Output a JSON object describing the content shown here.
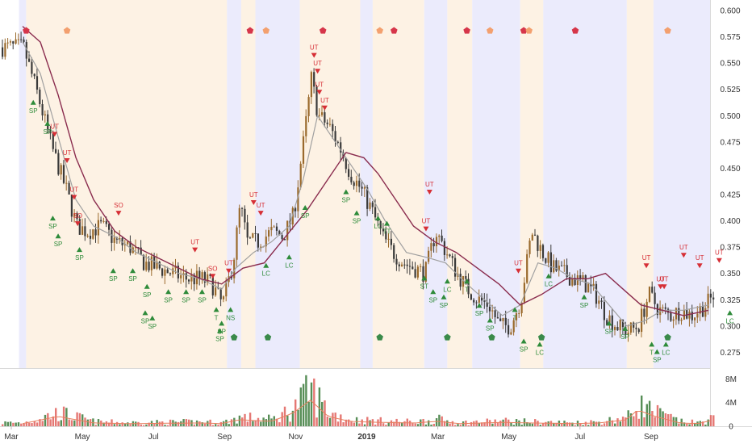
{
  "chart_data": {
    "type": "candlestick",
    "title": "",
    "price_axis": {
      "range": [
        0.26,
        0.61
      ],
      "ticks": [
        "0.600",
        "0.575",
        "0.550",
        "0.525",
        "0.500",
        "0.475",
        "0.450",
        "0.425",
        "0.400",
        "0.375",
        "0.350",
        "0.325",
        "0.300",
        "0.275"
      ]
    },
    "volume_axis": {
      "range": [
        0,
        9
      ],
      "unit": "M",
      "ticks": [
        "8M",
        "4M",
        "0"
      ]
    },
    "x_axis": {
      "ticks": [
        {
          "label": "Mar",
          "month": 0
        },
        {
          "label": "May",
          "month": 2
        },
        {
          "label": "Jul",
          "month": 4
        },
        {
          "label": "Sep",
          "month": 6
        },
        {
          "label": "Nov",
          "month": 8
        },
        {
          "label": "2019",
          "month": 10
        },
        {
          "label": "Mar",
          "month": 12
        },
        {
          "label": "May",
          "month": 14
        },
        {
          "label": "Jul",
          "month": 16
        },
        {
          "label": "Sep",
          "month": 18
        }
      ]
    },
    "background_bands": [
      {
        "from": -0.1,
        "to": 0.1,
        "color": "blue"
      },
      {
        "from": 0.1,
        "to": 5.75,
        "color": "orange"
      },
      {
        "from": 5.75,
        "to": 6.15,
        "color": "blue"
      },
      {
        "from": 6.15,
        "to": 6.55,
        "color": "orange"
      },
      {
        "from": 6.55,
        "to": 7.8,
        "color": "blue"
      },
      {
        "from": 7.8,
        "to": 9.5,
        "color": "orange"
      },
      {
        "from": 9.5,
        "to": 9.85,
        "color": "blue"
      },
      {
        "from": 9.85,
        "to": 11.3,
        "color": "orange"
      },
      {
        "from": 11.3,
        "to": 11.95,
        "color": "blue"
      },
      {
        "from": 11.95,
        "to": 12.65,
        "color": "orange"
      },
      {
        "from": 12.65,
        "to": 14.0,
        "color": "blue"
      },
      {
        "from": 14.0,
        "to": 14.65,
        "color": "orange"
      },
      {
        "from": 14.65,
        "to": 17.0,
        "color": "blue"
      },
      {
        "from": 17.0,
        "to": 17.75,
        "color": "orange"
      },
      {
        "from": 17.75,
        "to": 19.6,
        "color": "blue"
      }
    ],
    "price_path": [
      [
        0.0,
        0.565
      ],
      [
        0.4,
        0.52
      ],
      [
        0.8,
        0.47
      ],
      [
        1.2,
        0.43
      ],
      [
        1.5,
        0.395
      ],
      [
        1.8,
        0.39
      ],
      [
        2.2,
        0.395
      ],
      [
        2.6,
        0.38
      ],
      [
        3.0,
        0.375
      ],
      [
        3.4,
        0.36
      ],
      [
        3.8,
        0.355
      ],
      [
        4.2,
        0.35
      ],
      [
        4.6,
        0.345
      ],
      [
        5.0,
        0.345
      ],
      [
        5.3,
        0.34
      ],
      [
        5.6,
        0.32
      ],
      [
        5.9,
        0.36
      ],
      [
        6.1,
        0.415
      ],
      [
        6.3,
        0.38
      ],
      [
        6.6,
        0.38
      ],
      [
        7.0,
        0.39
      ],
      [
        7.3,
        0.385
      ],
      [
        7.6,
        0.405
      ],
      [
        7.9,
        0.48
      ],
      [
        8.1,
        0.535
      ],
      [
        8.3,
        0.5
      ],
      [
        8.6,
        0.49
      ],
      [
        8.9,
        0.47
      ],
      [
        9.2,
        0.445
      ],
      [
        9.5,
        0.43
      ],
      [
        9.8,
        0.41
      ],
      [
        10.1,
        0.385
      ],
      [
        10.4,
        0.37
      ],
      [
        10.7,
        0.36
      ],
      [
        11.0,
        0.355
      ],
      [
        11.3,
        0.35
      ],
      [
        11.6,
        0.39
      ],
      [
        11.9,
        0.37
      ],
      [
        12.2,
        0.35
      ],
      [
        12.5,
        0.335
      ],
      [
        12.8,
        0.325
      ],
      [
        13.1,
        0.32
      ],
      [
        13.4,
        0.3
      ],
      [
        13.7,
        0.3
      ],
      [
        14.0,
        0.325
      ],
      [
        14.3,
        0.39
      ],
      [
        14.6,
        0.37
      ],
      [
        14.9,
        0.355
      ],
      [
        15.2,
        0.35
      ],
      [
        15.5,
        0.345
      ],
      [
        15.8,
        0.34
      ],
      [
        16.1,
        0.33
      ],
      [
        16.4,
        0.31
      ],
      [
        16.7,
        0.3
      ],
      [
        17.0,
        0.295
      ],
      [
        17.3,
        0.3
      ],
      [
        17.6,
        0.33
      ],
      [
        17.9,
        0.315
      ],
      [
        18.2,
        0.31
      ],
      [
        18.5,
        0.315
      ],
      [
        18.8,
        0.31
      ],
      [
        19.2,
        0.32
      ],
      [
        19.45,
        0.33
      ]
    ],
    "moving_average_slow": [
      [
        0.0,
        0.585
      ],
      [
        0.5,
        0.57
      ],
      [
        1.0,
        0.52
      ],
      [
        1.5,
        0.46
      ],
      [
        2.0,
        0.42
      ],
      [
        2.6,
        0.39
      ],
      [
        3.2,
        0.375
      ],
      [
        3.8,
        0.365
      ],
      [
        4.4,
        0.355
      ],
      [
        5.0,
        0.345
      ],
      [
        5.6,
        0.34
      ],
      [
        6.2,
        0.355
      ],
      [
        6.8,
        0.36
      ],
      [
        7.4,
        0.385
      ],
      [
        8.0,
        0.41
      ],
      [
        8.6,
        0.44
      ],
      [
        9.1,
        0.465
      ],
      [
        9.6,
        0.46
      ],
      [
        10.0,
        0.445
      ],
      [
        10.5,
        0.42
      ],
      [
        11.0,
        0.395
      ],
      [
        11.6,
        0.38
      ],
      [
        12.2,
        0.37
      ],
      [
        12.8,
        0.355
      ],
      [
        13.4,
        0.34
      ],
      [
        14.0,
        0.32
      ],
      [
        14.6,
        0.33
      ],
      [
        15.3,
        0.345
      ],
      [
        15.9,
        0.345
      ],
      [
        16.4,
        0.35
      ],
      [
        16.9,
        0.335
      ],
      [
        17.4,
        0.32
      ],
      [
        18.0,
        0.315
      ],
      [
        18.6,
        0.31
      ],
      [
        19.3,
        0.315
      ]
    ],
    "moving_average_fast": [
      [
        0.0,
        0.57
      ],
      [
        0.5,
        0.54
      ],
      [
        1.0,
        0.48
      ],
      [
        1.5,
        0.42
      ],
      [
        2.0,
        0.395
      ],
      [
        2.6,
        0.385
      ],
      [
        3.2,
        0.37
      ],
      [
        3.8,
        0.36
      ],
      [
        4.4,
        0.35
      ],
      [
        5.0,
        0.345
      ],
      [
        5.6,
        0.335
      ],
      [
        6.0,
        0.355
      ],
      [
        6.5,
        0.37
      ],
      [
        7.0,
        0.38
      ],
      [
        7.5,
        0.395
      ],
      [
        7.9,
        0.44
      ],
      [
        8.3,
        0.5
      ],
      [
        8.7,
        0.48
      ],
      [
        9.2,
        0.455
      ],
      [
        9.7,
        0.43
      ],
      [
        10.2,
        0.4
      ],
      [
        10.8,
        0.37
      ],
      [
        11.4,
        0.365
      ],
      [
        11.9,
        0.36
      ],
      [
        12.5,
        0.34
      ],
      [
        13.0,
        0.325
      ],
      [
        13.5,
        0.31
      ],
      [
        14.0,
        0.32
      ],
      [
        14.5,
        0.36
      ],
      [
        15.0,
        0.355
      ],
      [
        15.5,
        0.345
      ],
      [
        16.0,
        0.34
      ],
      [
        16.5,
        0.32
      ],
      [
        17.0,
        0.3
      ],
      [
        17.5,
        0.305
      ],
      [
        18.0,
        0.315
      ],
      [
        18.6,
        0.315
      ],
      [
        19.3,
        0.32
      ]
    ],
    "volume_path": [
      [
        0.0,
        0.8
      ],
      [
        1.0,
        3.0
      ],
      [
        2.0,
        1.0
      ],
      [
        3.0,
        0.8
      ],
      [
        4.0,
        0.9
      ],
      [
        5.0,
        1.0
      ],
      [
        5.6,
        0.8
      ],
      [
        6.1,
        2.0
      ],
      [
        7.0,
        1.5
      ],
      [
        7.6,
        4.0
      ],
      [
        8.1,
        8.0
      ],
      [
        8.6,
        3.0
      ],
      [
        9.2,
        1.5
      ],
      [
        10.0,
        1.2
      ],
      [
        11.0,
        1.0
      ],
      [
        11.7,
        1.5
      ],
      [
        12.3,
        0.8
      ],
      [
        13.5,
        1.2
      ],
      [
        14.3,
        1.0
      ],
      [
        15.5,
        0.8
      ],
      [
        16.2,
        1.0
      ],
      [
        17.0,
        2.0
      ],
      [
        17.3,
        5.0
      ],
      [
        17.8,
        3.0
      ],
      [
        18.5,
        1.0
      ],
      [
        19.0,
        0.8
      ],
      [
        19.45,
        2.0
      ]
    ],
    "signals": [
      {
        "label": "SP",
        "month": 0.3,
        "price": 0.515,
        "side": "below"
      },
      {
        "label": "SP",
        "month": 0.7,
        "price": 0.495,
        "side": "below"
      },
      {
        "label": "UT",
        "month": 0.9,
        "price": 0.48,
        "side": "above"
      },
      {
        "label": "UT",
        "month": 1.25,
        "price": 0.455,
        "side": "above"
      },
      {
        "label": "UT",
        "month": 1.45,
        "price": 0.42,
        "side": "above"
      },
      {
        "label": "SP",
        "month": 0.85,
        "price": 0.405,
        "side": "below"
      },
      {
        "label": "SO",
        "month": 1.55,
        "price": 0.395,
        "side": "above"
      },
      {
        "label": "SP",
        "month": 1.0,
        "price": 0.388,
        "side": "below"
      },
      {
        "label": "SP",
        "month": 1.6,
        "price": 0.375,
        "side": "below"
      },
      {
        "label": "SO",
        "month": 2.7,
        "price": 0.405,
        "side": "above"
      },
      {
        "label": "SP",
        "month": 2.55,
        "price": 0.355,
        "side": "below"
      },
      {
        "label": "SP",
        "month": 3.1,
        "price": 0.355,
        "side": "below"
      },
      {
        "label": "SP",
        "month": 3.5,
        "price": 0.34,
        "side": "below"
      },
      {
        "label": "SP",
        "month": 3.45,
        "price": 0.315,
        "side": "below"
      },
      {
        "label": "SP",
        "month": 3.65,
        "price": 0.31,
        "side": "below"
      },
      {
        "label": "SP",
        "month": 4.1,
        "price": 0.335,
        "side": "below"
      },
      {
        "label": "UT",
        "month": 4.85,
        "price": 0.37,
        "side": "above"
      },
      {
        "label": "SP",
        "month": 4.6,
        "price": 0.335,
        "side": "below"
      },
      {
        "label": "SP",
        "month": 5.05,
        "price": 0.335,
        "side": "below"
      },
      {
        "label": "SO",
        "month": 5.35,
        "price": 0.345,
        "side": "above"
      },
      {
        "label": "T",
        "month": 5.45,
        "price": 0.318,
        "side": "below"
      },
      {
        "label": "SP",
        "month": 5.6,
        "price": 0.305,
        "side": "below"
      },
      {
        "label": "SP",
        "month": 5.55,
        "price": 0.298,
        "side": "below"
      },
      {
        "label": "UT",
        "month": 5.8,
        "price": 0.35,
        "side": "above"
      },
      {
        "label": "NS",
        "month": 5.85,
        "price": 0.318,
        "side": "below"
      },
      {
        "label": "UT",
        "month": 6.5,
        "price": 0.415,
        "side": "above"
      },
      {
        "label": "UT",
        "month": 6.7,
        "price": 0.405,
        "side": "above"
      },
      {
        "label": "LC",
        "month": 6.85,
        "price": 0.36,
        "side": "below"
      },
      {
        "label": "LC",
        "month": 7.5,
        "price": 0.368,
        "side": "below"
      },
      {
        "label": "SP",
        "month": 7.95,
        "price": 0.415,
        "side": "below"
      },
      {
        "label": "UT",
        "month": 8.2,
        "price": 0.555,
        "side": "above"
      },
      {
        "label": "UT",
        "month": 8.3,
        "price": 0.54,
        "side": "above"
      },
      {
        "label": "UT",
        "month": 8.35,
        "price": 0.52,
        "side": "above"
      },
      {
        "label": "UT",
        "month": 8.5,
        "price": 0.505,
        "side": "above"
      },
      {
        "label": "SP",
        "month": 9.1,
        "price": 0.43,
        "side": "below"
      },
      {
        "label": "SP",
        "month": 9.4,
        "price": 0.41,
        "side": "below"
      },
      {
        "label": "LC",
        "month": 10.0,
        "price": 0.405,
        "side": "below"
      },
      {
        "label": "TT",
        "month": 10.25,
        "price": 0.4,
        "side": "below"
      },
      {
        "label": "UT",
        "month": 11.45,
        "price": 0.425,
        "side": "above"
      },
      {
        "label": "UT",
        "month": 11.35,
        "price": 0.39,
        "side": "above"
      },
      {
        "label": "ST",
        "month": 11.3,
        "price": 0.348,
        "side": "below"
      },
      {
        "label": "SP",
        "month": 11.55,
        "price": 0.335,
        "side": "below"
      },
      {
        "label": "SP",
        "month": 11.85,
        "price": 0.33,
        "side": "below"
      },
      {
        "label": "LC",
        "month": 11.95,
        "price": 0.345,
        "side": "below"
      },
      {
        "label": "T",
        "month": 12.5,
        "price": 0.345,
        "side": "below"
      },
      {
        "label": "SP",
        "month": 12.85,
        "price": 0.322,
        "side": "below"
      },
      {
        "label": "SP",
        "month": 13.15,
        "price": 0.308,
        "side": "below"
      },
      {
        "label": "UT",
        "month": 13.95,
        "price": 0.35,
        "side": "above"
      },
      {
        "label": "T",
        "month": 13.85,
        "price": 0.318,
        "side": "below"
      },
      {
        "label": "SP",
        "month": 14.1,
        "price": 0.288,
        "side": "below"
      },
      {
        "label": "LC",
        "month": 14.55,
        "price": 0.285,
        "side": "below"
      },
      {
        "label": "LC",
        "month": 14.8,
        "price": 0.35,
        "side": "below"
      },
      {
        "label": "SP",
        "month": 15.8,
        "price": 0.33,
        "side": "below"
      },
      {
        "label": "SP",
        "month": 16.5,
        "price": 0.305,
        "side": "below"
      },
      {
        "label": "SP",
        "month": 16.95,
        "price": 0.3,
        "side": "below"
      },
      {
        "label": "UT",
        "month": 17.55,
        "price": 0.355,
        "side": "above"
      },
      {
        "label": "UT",
        "month": 17.95,
        "price": 0.335,
        "side": "above"
      },
      {
        "label": "UT",
        "month": 18.05,
        "price": 0.335,
        "side": "above"
      },
      {
        "label": "T",
        "month": 17.7,
        "price": 0.285,
        "side": "below"
      },
      {
        "label": "SP",
        "month": 17.85,
        "price": 0.278,
        "side": "below"
      },
      {
        "label": "LC",
        "month": 18.1,
        "price": 0.285,
        "side": "below"
      },
      {
        "label": "UT",
        "month": 18.6,
        "price": 0.365,
        "side": "above"
      },
      {
        "label": "UT",
        "month": 19.05,
        "price": 0.355,
        "side": "above"
      },
      {
        "label": "UT",
        "month": 19.6,
        "price": 0.36,
        "side": "above"
      },
      {
        "label": "LC",
        "month": 19.9,
        "price": 0.315,
        "side": "below"
      }
    ],
    "top_markers": [
      {
        "month": 0.1,
        "color": "red"
      },
      {
        "month": 1.25,
        "color": "orange"
      },
      {
        "month": 6.4,
        "color": "red"
      },
      {
        "month": 6.85,
        "color": "orange"
      },
      {
        "month": 8.45,
        "color": "red"
      },
      {
        "month": 10.05,
        "color": "orange"
      },
      {
        "month": 10.45,
        "color": "red"
      },
      {
        "month": 12.5,
        "color": "red"
      },
      {
        "month": 13.15,
        "color": "orange"
      },
      {
        "month": 14.1,
        "color": "red"
      },
      {
        "month": 14.25,
        "color": "orange"
      },
      {
        "month": 15.55,
        "color": "red"
      },
      {
        "month": 18.15,
        "color": "orange"
      }
    ],
    "bottom_markers": [
      5.95,
      6.9,
      10.05,
      11.95,
      13.2,
      14.6,
      18.15
    ],
    "colors": {
      "band_blue": "#ebebfc",
      "band_orange": "#fdf2e4",
      "up_candle": "#9a6a2c",
      "down_candle": "#3a3a3a",
      "ma_slow": "#8a2c4e",
      "ma_fast": "#a0a0a0",
      "signal_green": "#2e8b3a",
      "signal_red": "#d62f36",
      "marker_red": "#d6364a",
      "marker_orange": "#f3a06f",
      "marker_green": "#3a8a4a",
      "volume_up": "#3a7a3a",
      "volume_down": "#e0605c",
      "volume_ma": "#e88060"
    }
  }
}
